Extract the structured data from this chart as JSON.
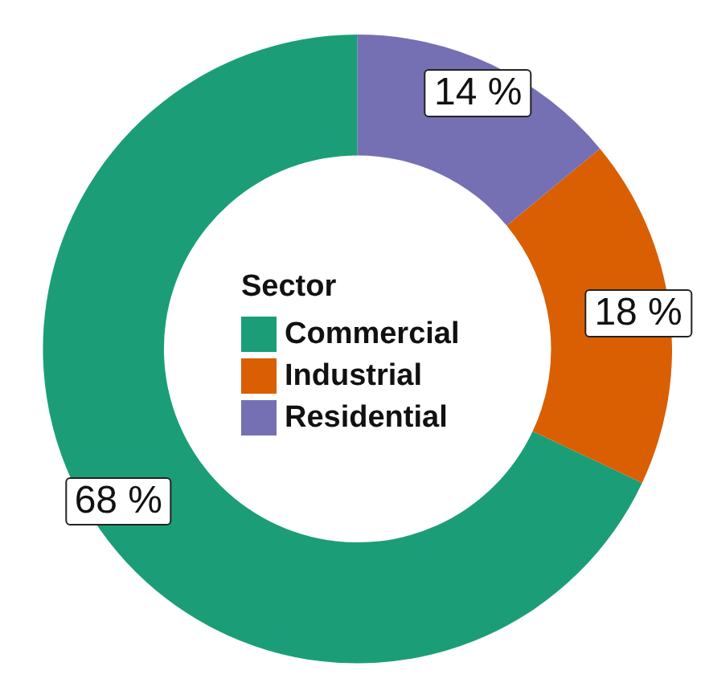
{
  "chart_data": {
    "type": "donut",
    "legend_title": "Sector",
    "legend": "center",
    "categories": [
      "Commercial",
      "Industrial",
      "Residential"
    ],
    "values": [
      68,
      18,
      14
    ],
    "colors": [
      "#1b9e77",
      "#d95f02",
      "#7570b3"
    ],
    "value_labels": [
      "68 %",
      "18 %",
      "14 %"
    ]
  }
}
